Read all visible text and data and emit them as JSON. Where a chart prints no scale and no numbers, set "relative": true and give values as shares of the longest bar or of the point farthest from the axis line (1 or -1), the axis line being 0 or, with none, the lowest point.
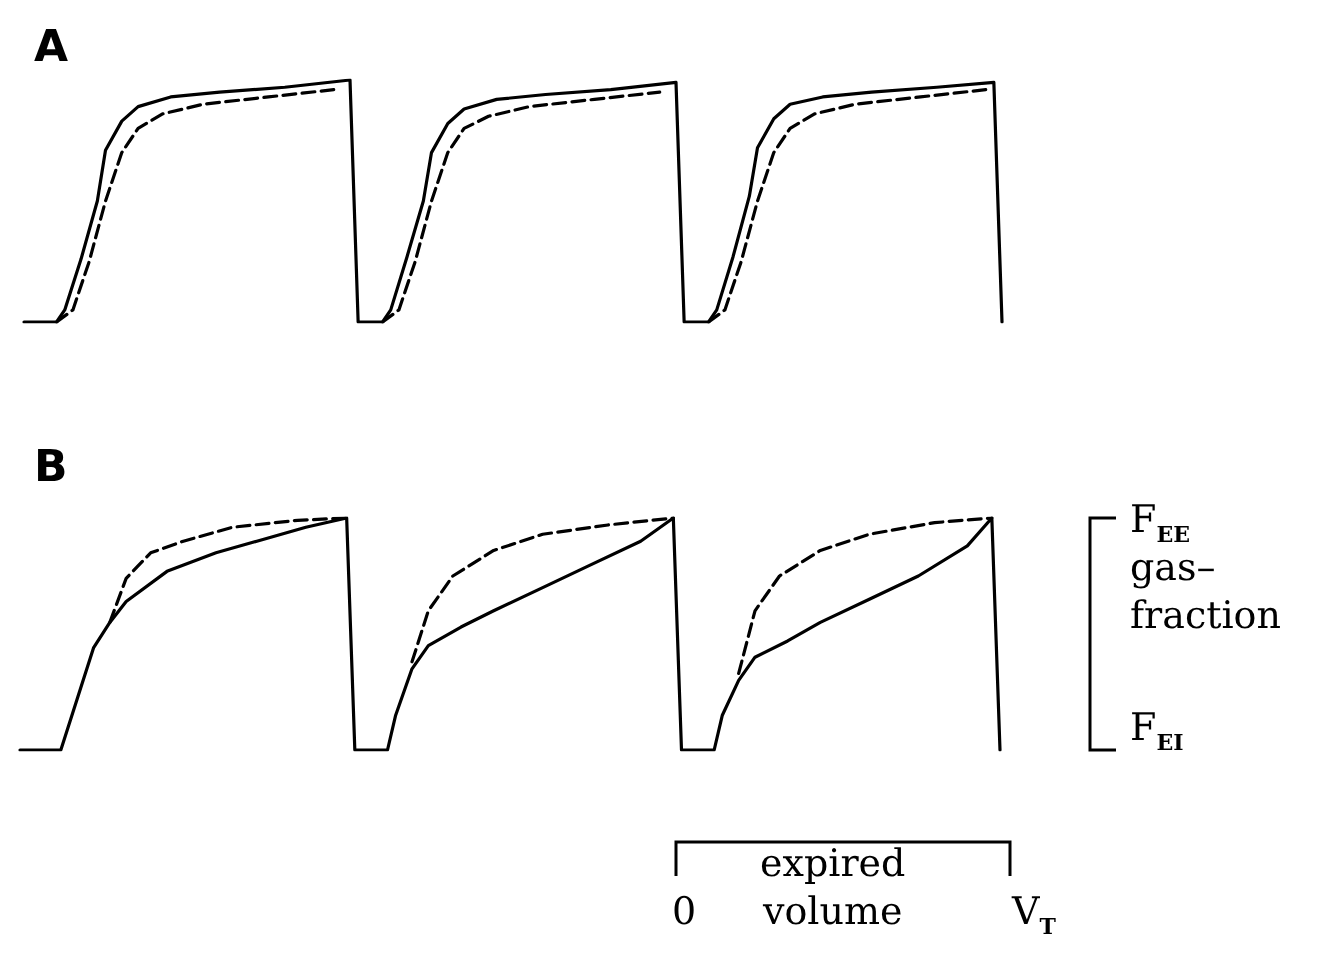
{
  "chart_data": [
    {
      "type": "line",
      "title": "A",
      "relative": true,
      "categories": [
        null,
        null,
        null,
        null,
        null,
        null,
        null,
        null,
        null,
        null,
        null,
        null,
        null,
        null,
        null,
        null,
        null,
        null,
        null,
        null,
        null,
        null,
        null,
        null,
        null,
        null,
        null,
        null,
        null,
        null,
        null,
        null,
        null,
        null,
        null,
        null,
        null,
        null,
        null,
        null,
        null,
        null,
        null,
        null,
        null,
        null,
        null,
        null,
        null,
        null,
        null,
        null,
        null,
        null,
        null,
        null,
        null,
        null,
        null,
        null,
        null,
        null,
        null,
        null,
        null,
        null,
        null,
        null,
        null,
        null,
        null,
        null,
        null,
        null,
        null,
        null,
        null,
        null,
        null,
        null,
        null,
        null,
        null,
        null,
        null,
        null,
        null,
        null,
        null,
        null,
        null,
        null,
        null,
        null,
        null,
        null,
        null,
        null,
        null,
        null,
        null,
        null,
        null,
        null,
        null,
        null,
        null,
        null,
        null,
        null,
        null,
        null,
        null,
        null,
        null,
        null,
        null,
        null,
        null,
        null,
        null
      ],
      "series": [
        {
          "color": "#000000",
          "line_style": "solid",
          "values": [
            0,
            null,
            null,
            null,
            0,
            0.05,
            null,
            0.26,
            null,
            0.5,
            0.71,
            null,
            0.83,
            null,
            0.89,
            null,
            null,
            null,
            0.93,
            null,
            null,
            null,
            null,
            null,
            0.95,
            null,
            null,
            null,
            null,
            null,
            null,
            null,
            0.97,
            null,
            null,
            null,
            null,
            null,
            null,
            null,
            1,
            0,
            null,
            null,
            0,
            0.05,
            null,
            0.27,
            null,
            0.5,
            0.7,
            null,
            0.82,
            null,
            0.88,
            null,
            null,
            null,
            0.92,
            null,
            null,
            null,
            null,
            null,
            0.94,
            null,
            null,
            null,
            null,
            null,
            null,
            null,
            0.96,
            null,
            null,
            null,
            null,
            null,
            null,
            null,
            0.99,
            0,
            null,
            null,
            0,
            0.05,
            null,
            0.27,
            null,
            0.52,
            0.72,
            null,
            0.84,
            null,
            0.9,
            null,
            null,
            null,
            0.93,
            null,
            null,
            null,
            null,
            null,
            0.95,
            null,
            null,
            null,
            null,
            null,
            null,
            null,
            0.97,
            null,
            null,
            null,
            null,
            null,
            null,
            0.99,
            0
          ]
        },
        {
          "color": "#000000",
          "line_style": "dashed",
          "values": [
            null,
            null,
            null,
            null,
            0,
            null,
            0.05,
            null,
            0.25,
            null,
            0.5,
            null,
            0.7,
            null,
            0.8,
            null,
            null,
            0.86,
            null,
            null,
            null,
            null,
            0.9,
            null,
            null,
            null,
            null,
            null,
            null,
            null,
            0.93,
            null,
            null,
            null,
            null,
            null,
            null,
            null,
            0.96,
            null,
            null,
            null,
            null,
            null,
            null,
            null,
            null,
            null,
            null,
            null,
            null,
            null,
            null,
            null,
            null,
            null,
            null,
            null,
            null,
            null,
            null,
            null,
            null,
            null,
            null,
            null,
            null,
            null,
            null,
            null,
            null,
            null,
            null,
            null,
            null,
            null,
            null,
            null,
            null,
            null,
            null,
            null,
            null,
            null,
            null,
            null,
            null,
            null,
            null,
            null,
            null,
            null,
            null,
            null,
            null,
            null,
            null,
            null,
            null,
            null,
            null,
            null,
            null,
            null,
            null,
            null,
            null,
            null,
            null,
            null,
            null,
            null,
            null,
            null,
            null,
            null,
            null,
            null,
            null,
            null,
            null
          ]
        },
        {
          "color": "#000000",
          "line_style": "dashed",
          "values": [
            null,
            null,
            null,
            null,
            null,
            null,
            null,
            null,
            null,
            null,
            null,
            null,
            null,
            null,
            null,
            null,
            null,
            null,
            null,
            null,
            null,
            null,
            null,
            null,
            null,
            null,
            null,
            null,
            null,
            null,
            null,
            null,
            null,
            null,
            null,
            null,
            null,
            null,
            null,
            null,
            null,
            null,
            null,
            null,
            0,
            null,
            0.05,
            null,
            0.25,
            null,
            0.5,
            null,
            0.7,
            null,
            0.8,
            null,
            null,
            0.85,
            null,
            null,
            null,
            null,
            0.89,
            null,
            null,
            null,
            null,
            null,
            null,
            null,
            0.92,
            null,
            null,
            null,
            null,
            null,
            null,
            null,
            0.95,
            null,
            null,
            null,
            null,
            null,
            null,
            null,
            null,
            null,
            null,
            null,
            null,
            null,
            null,
            null,
            null,
            null,
            null,
            null,
            null,
            null,
            null,
            null,
            null,
            null,
            null,
            null,
            null,
            null,
            null,
            null,
            null,
            null,
            null,
            null,
            null,
            null,
            null,
            null,
            null,
            null,
            null
          ]
        },
        {
          "color": "#000000",
          "line_style": "dashed",
          "values": [
            null,
            null,
            null,
            null,
            null,
            null,
            null,
            null,
            null,
            null,
            null,
            null,
            null,
            null,
            null,
            null,
            null,
            null,
            null,
            null,
            null,
            null,
            null,
            null,
            null,
            null,
            null,
            null,
            null,
            null,
            null,
            null,
            null,
            null,
            null,
            null,
            null,
            null,
            null,
            null,
            null,
            null,
            null,
            null,
            null,
            null,
            null,
            null,
            null,
            null,
            null,
            null,
            null,
            null,
            null,
            null,
            null,
            null,
            null,
            null,
            null,
            null,
            null,
            null,
            null,
            null,
            null,
            null,
            null,
            null,
            null,
            null,
            null,
            null,
            null,
            null,
            null,
            null,
            null,
            null,
            null,
            null,
            null,
            null,
            0,
            null,
            0.05,
            null,
            0.25,
            null,
            0.5,
            null,
            0.7,
            null,
            0.8,
            null,
            null,
            0.86,
            null,
            null,
            null,
            null,
            0.9,
            null,
            null,
            null,
            null,
            null,
            null,
            null,
            0.93,
            null,
            null,
            null,
            null,
            null,
            null,
            null,
            0.96,
            null,
            null
          ]
        }
      ]
    },
    {
      "type": "line",
      "title": "B",
      "relative": true,
      "annotations": [
        "F$_{EE}$",
        "gas–\nfraction",
        "F$_{EI}$",
        "0",
        "expired\nvolume",
        "V$_{T}$"
      ],
      "categories": [
        null,
        null,
        null,
        null,
        null,
        null,
        null,
        null,
        null,
        null,
        null,
        null,
        null,
        null,
        null,
        null,
        null,
        null,
        null,
        null,
        null,
        null,
        null,
        null,
        null,
        null,
        null,
        null,
        null,
        null,
        null,
        null,
        null,
        null,
        null,
        null,
        null,
        null,
        null,
        null,
        null,
        null,
        null,
        null,
        null,
        null,
        null,
        null,
        null,
        null,
        null,
        null,
        null,
        null,
        null,
        null,
        null,
        null,
        null,
        null,
        null,
        null,
        null,
        null,
        null,
        null,
        null,
        null,
        null,
        null,
        null,
        null,
        null,
        null,
        null,
        null,
        null,
        null,
        null,
        null,
        null,
        null,
        null,
        null,
        null,
        null,
        null,
        null,
        null,
        null,
        null,
        null,
        null,
        null,
        null,
        null,
        null,
        null,
        null,
        null,
        null,
        null,
        null,
        null,
        null,
        null,
        null,
        null,
        null,
        null,
        null,
        null,
        null,
        null,
        null,
        null,
        null,
        null,
        null,
        null,
        null
      ],
      "series": [
        {
          "color": "#000000",
          "line_style": "solid",
          "values": [
            0,
            null,
            null,
            null,
            null,
            0,
            null,
            0.22,
            null,
            0.44,
            null,
            0.55,
            null,
            0.64,
            null,
            null,
            null,
            null,
            0.77,
            null,
            null,
            null,
            null,
            null,
            0.85,
            null,
            null,
            null,
            null,
            0.9,
            null,
            null,
            null,
            null,
            null,
            0.96,
            null,
            null,
            null,
            null,
            1,
            0,
            null,
            null,
            null,
            0,
            0.15,
            null,
            0.35,
            null,
            0.45,
            null,
            null,
            null,
            0.53,
            null,
            null,
            null,
            0.6,
            null,
            null,
            null,
            null,
            null,
            0.7,
            null,
            null,
            null,
            null,
            null,
            0.8,
            null,
            null,
            null,
            null,
            null,
            0.9,
            null,
            null,
            null,
            1,
            0,
            null,
            null,
            null,
            0,
            0.15,
            null,
            0.3,
            null,
            0.4,
            null,
            null,
            null,
            0.47,
            null,
            null,
            null,
            0.55,
            null,
            null,
            null,
            null,
            null,
            0.65,
            null,
            null,
            null,
            null,
            null,
            0.75,
            null,
            null,
            null,
            null,
            null,
            0.88,
            null,
            null,
            1,
            0
          ]
        },
        {
          "color": "#000000",
          "line_style": "dashed",
          "values": [
            null,
            null,
            null,
            null,
            null,
            null,
            null,
            null,
            null,
            null,
            null,
            0.55,
            null,
            0.74,
            null,
            null,
            0.85,
            null,
            null,
            null,
            0.9,
            null,
            null,
            null,
            null,
            null,
            0.96,
            null,
            null,
            null,
            null,
            null,
            null,
            null,
            0.99,
            null,
            null,
            null,
            null,
            null,
            1,
            null,
            null,
            null,
            null,
            null,
            null,
            null,
            null,
            null,
            null,
            null,
            null,
            null,
            null,
            null,
            null,
            null,
            null,
            null,
            null,
            null,
            null,
            null,
            null,
            null,
            null,
            null,
            null,
            null,
            null,
            null,
            null,
            null,
            null,
            null,
            null,
            null,
            null,
            null,
            null,
            null,
            null,
            null,
            null,
            null,
            null,
            null,
            null,
            null,
            null,
            null,
            null,
            null,
            null,
            null,
            null,
            null,
            null,
            null,
            null,
            null,
            null,
            null,
            null,
            null,
            null,
            null,
            null,
            null,
            null,
            null,
            null,
            null,
            null,
            null,
            null,
            null,
            null,
            null,
            null
          ]
        },
        {
          "color": "#000000",
          "line_style": "dashed",
          "values": [
            null,
            null,
            null,
            null,
            null,
            null,
            null,
            null,
            null,
            null,
            null,
            null,
            null,
            null,
            null,
            null,
            null,
            null,
            null,
            null,
            null,
            null,
            null,
            null,
            null,
            null,
            null,
            null,
            null,
            null,
            null,
            null,
            null,
            null,
            null,
            null,
            null,
            null,
            null,
            null,
            null,
            null,
            null,
            null,
            null,
            null,
            null,
            null,
            0.38,
            null,
            0.6,
            null,
            null,
            0.75,
            null,
            null,
            null,
            null,
            0.86,
            null,
            null,
            null,
            null,
            null,
            0.93,
            null,
            null,
            null,
            null,
            null,
            null,
            null,
            0.97,
            null,
            null,
            null,
            null,
            null,
            null,
            null,
            1,
            null,
            null,
            null,
            null,
            null,
            null,
            null,
            null,
            null,
            null,
            null,
            null,
            null,
            null,
            null,
            null,
            null,
            null,
            null,
            null,
            null,
            null,
            null,
            null,
            null,
            null,
            null,
            null,
            null,
            null,
            null,
            null,
            null,
            null,
            null,
            null,
            null,
            null,
            null,
            null
          ]
        },
        {
          "color": "#000000",
          "line_style": "dashed",
          "values": [
            null,
            null,
            null,
            null,
            null,
            null,
            null,
            null,
            null,
            null,
            null,
            null,
            null,
            null,
            null,
            null,
            null,
            null,
            null,
            null,
            null,
            null,
            null,
            null,
            null,
            null,
            null,
            null,
            null,
            null,
            null,
            null,
            null,
            null,
            null,
            null,
            null,
            null,
            null,
            null,
            null,
            null,
            null,
            null,
            null,
            null,
            null,
            null,
            null,
            null,
            null,
            null,
            null,
            null,
            null,
            null,
            null,
            null,
            null,
            null,
            null,
            null,
            null,
            null,
            null,
            null,
            null,
            null,
            null,
            null,
            null,
            null,
            null,
            null,
            null,
            null,
            null,
            null,
            null,
            null,
            null,
            null,
            null,
            null,
            null,
            null,
            null,
            null,
            0.33,
            null,
            0.6,
            null,
            null,
            0.75,
            null,
            null,
            null,
            null,
            0.86,
            null,
            null,
            null,
            null,
            null,
            0.93,
            null,
            null,
            null,
            null,
            null,
            null,
            null,
            0.98,
            null,
            null,
            null,
            null,
            null,
            null,
            1,
            null
          ]
        }
      ]
    }
  ]
}
